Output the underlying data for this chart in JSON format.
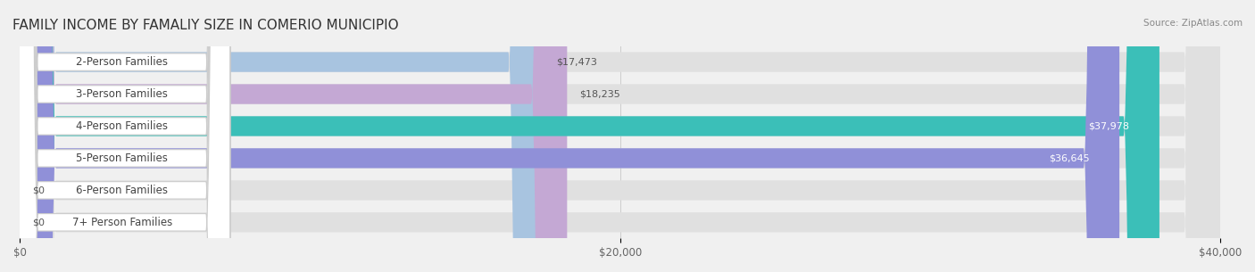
{
  "title": "FAMILY INCOME BY FAMALIY SIZE IN COMERIO MUNICIPIO",
  "source": "Source: ZipAtlas.com",
  "categories": [
    "2-Person Families",
    "3-Person Families",
    "4-Person Families",
    "5-Person Families",
    "6-Person Families",
    "7+ Person Families"
  ],
  "values": [
    17473,
    18235,
    37978,
    36645,
    0,
    0
  ],
  "bar_colors": [
    "#a8c4e0",
    "#c4a8d4",
    "#3bbfb8",
    "#9090d8",
    "#f48cb0",
    "#f0c890"
  ],
  "label_colors": [
    "#a8c4e0",
    "#c4a8d4",
    "#3bbfb8",
    "#9090d8",
    "#f48cb0",
    "#f0c890"
  ],
  "value_labels": [
    "$17,473",
    "$18,235",
    "$37,978",
    "$36,645",
    "$0",
    "$0"
  ],
  "xlim": [
    0,
    40000
  ],
  "xticks": [
    0,
    20000,
    40000
  ],
  "xticklabels": [
    "$0",
    "$20,000",
    "$40,000"
  ],
  "title_fontsize": 11,
  "bar_height": 0.62,
  "background_color": "#f0f0f0",
  "bar_background": "#e8e8e8"
}
